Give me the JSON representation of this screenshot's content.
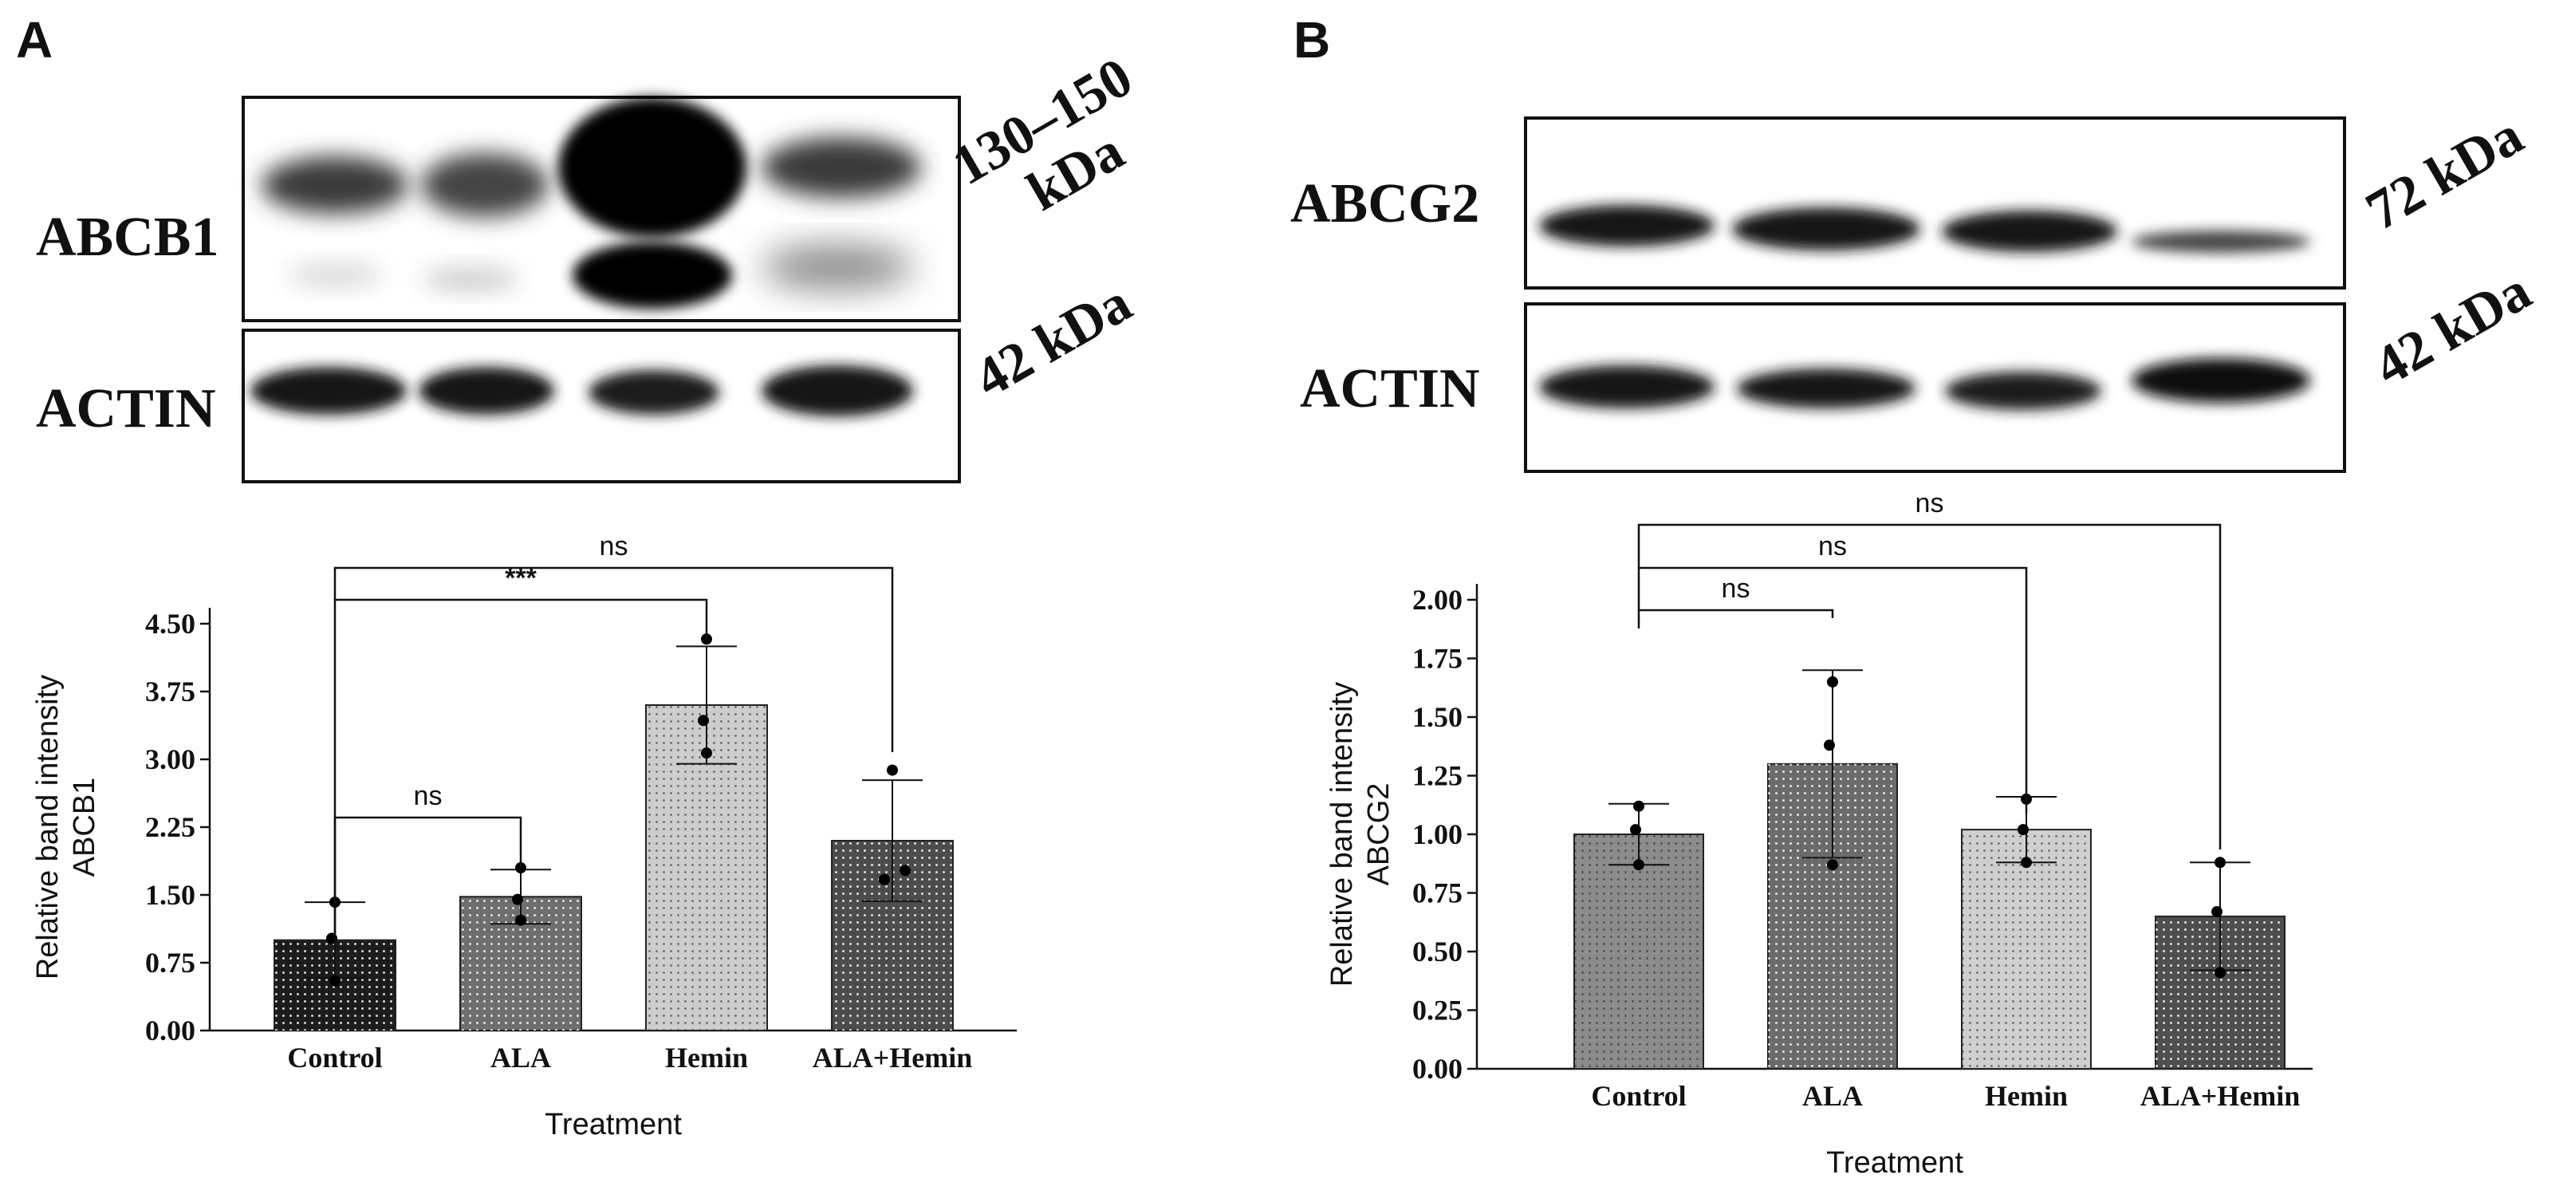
{
  "panels": [
    {
      "letter": "A",
      "blot": {
        "rows": [
          {
            "protein": "ABCB1",
            "mw_lines": [
              "130–150",
              "kDa"
            ]
          },
          {
            "protein": "ACTIN",
            "mw_lines": [
              "42 kDa"
            ]
          }
        ]
      }
    },
    {
      "letter": "B",
      "blot": {
        "rows": [
          {
            "protein": "ABCG2",
            "mw_lines": [
              "72 kDa"
            ]
          },
          {
            "protein": "ACTIN",
            "mw_lines": [
              "42 kDa"
            ]
          }
        ]
      }
    }
  ],
  "chart_data": [
    {
      "type": "bar",
      "panel": "A",
      "categories": [
        "Control",
        "ALA",
        "Hemin",
        "ALA+Hemin"
      ],
      "values": [
        1.0,
        1.48,
        3.6,
        2.1
      ],
      "error_sd": [
        0.42,
        0.3,
        0.65,
        0.67
      ],
      "points": [
        [
          1.42,
          1.02,
          0.55
        ],
        [
          1.8,
          1.45,
          1.22
        ],
        [
          4.33,
          3.43,
          3.07
        ],
        [
          2.88,
          1.77,
          1.67
        ]
      ],
      "bar_colors": [
        "#1c1c1c",
        "#6e6e6e",
        "#cdcdcd",
        "#4c4c4c"
      ],
      "xlabel": "Treatment",
      "ylabel_lines": [
        "Relative band intensity",
        "ABCB1"
      ],
      "ylim": [
        0,
        4.5
      ],
      "yticks": [
        "0.00",
        "0.75",
        "1.50",
        "2.25",
        "3.00",
        "3.75",
        "4.50"
      ],
      "comparisons": [
        {
          "from": "Control",
          "to": "ALA",
          "label": "ns"
        },
        {
          "from": "Control",
          "to": "Hemin",
          "label": "***"
        },
        {
          "from": "Control",
          "to": "ALA+Hemin",
          "label": "ns"
        }
      ]
    },
    {
      "type": "bar",
      "panel": "B",
      "categories": [
        "Control",
        "ALA",
        "Hemin",
        "ALA+Hemin"
      ],
      "values": [
        1.0,
        1.3,
        1.02,
        0.65
      ],
      "error_sd": [
        0.13,
        0.4,
        0.14,
        0.23
      ],
      "points": [
        [
          1.12,
          1.02,
          0.87
        ],
        [
          1.65,
          1.38,
          0.87
        ],
        [
          1.15,
          1.02,
          0.88
        ],
        [
          0.88,
          0.67,
          0.41
        ]
      ],
      "bar_colors": [
        "#8c8c8c",
        "#6b6b6b",
        "#cfcfcf",
        "#4e4e4e"
      ],
      "xlabel": "Treatment",
      "ylabel_lines": [
        "Relative band intensity",
        "ABCG2"
      ],
      "ylim": [
        0,
        2.0
      ],
      "yticks": [
        "0.00",
        "0.25",
        "0.50",
        "0.75",
        "1.00",
        "1.25",
        "1.50",
        "1.75",
        "2.00"
      ],
      "comparisons": [
        {
          "from": "Control",
          "to": "ALA",
          "label": "ns"
        },
        {
          "from": "Control",
          "to": "Hemin",
          "label": "ns"
        },
        {
          "from": "Control",
          "to": "ALA+Hemin",
          "label": "ns"
        }
      ]
    }
  ]
}
